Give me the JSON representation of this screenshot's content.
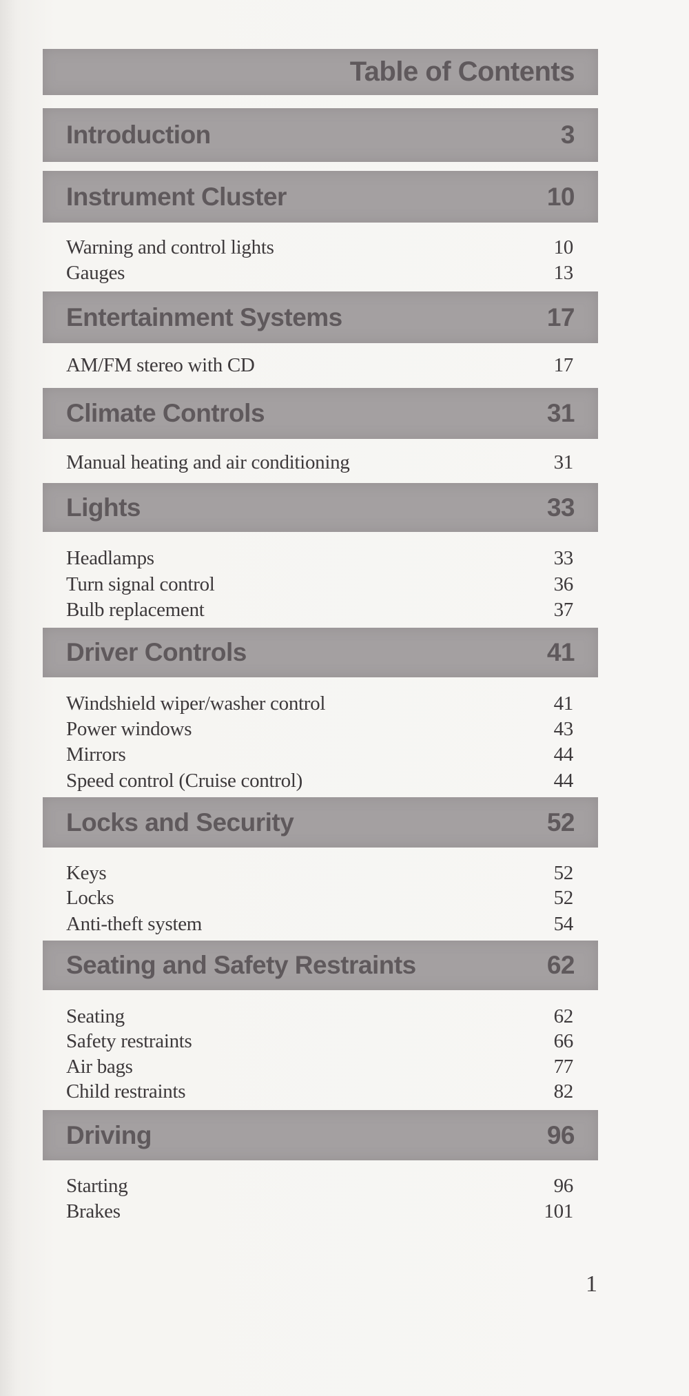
{
  "title": "Table of Contents",
  "sections": [
    {
      "heading": "Introduction",
      "page": "3",
      "entries": []
    },
    {
      "heading": "Instrument Cluster",
      "page": "10",
      "entries": [
        {
          "label": "Warning and control lights",
          "page": "10"
        },
        {
          "label": "Gauges",
          "page": "13"
        }
      ]
    },
    {
      "heading": "Entertainment Systems",
      "page": "17",
      "entries": [
        {
          "label": "AM/FM stereo with CD",
          "page": "17"
        }
      ]
    },
    {
      "heading": "Climate Controls",
      "page": "31",
      "entries": [
        {
          "label": "Manual heating and air conditioning",
          "page": "31"
        }
      ]
    },
    {
      "heading": "Lights",
      "page": "33",
      "entries": [
        {
          "label": "Headlamps",
          "page": "33"
        },
        {
          "label": "Turn signal control",
          "page": "36"
        },
        {
          "label": "Bulb replacement",
          "page": "37"
        }
      ]
    },
    {
      "heading": "Driver Controls",
      "page": "41",
      "entries": [
        {
          "label": "Windshield wiper/washer control",
          "page": "41"
        },
        {
          "label": "Power windows",
          "page": "43"
        },
        {
          "label": "Mirrors",
          "page": "44"
        },
        {
          "label": "Speed control (Cruise control)",
          "page": "44"
        }
      ]
    },
    {
      "heading": "Locks and Security",
      "page": "52",
      "entries": [
        {
          "label": "Keys",
          "page": "52"
        },
        {
          "label": "Locks",
          "page": "52"
        },
        {
          "label": "Anti-theft system",
          "page": "54"
        }
      ]
    },
    {
      "heading": "Seating and Safety Restraints",
      "page": "62",
      "entries": [
        {
          "label": "Seating",
          "page": "62"
        },
        {
          "label": "Safety restraints",
          "page": "66"
        },
        {
          "label": "Air bags",
          "page": "77"
        },
        {
          "label": "Child restraints",
          "page": "82"
        }
      ]
    },
    {
      "heading": "Driving",
      "page": "96",
      "entries": [
        {
          "label": "Starting",
          "page": "96"
        },
        {
          "label": "Brakes",
          "page": "101"
        }
      ]
    }
  ],
  "page_number": "1",
  "colors": {
    "banner": "#a4a0a1",
    "banner_text": "#5f595c",
    "text": "#3d393b"
  }
}
